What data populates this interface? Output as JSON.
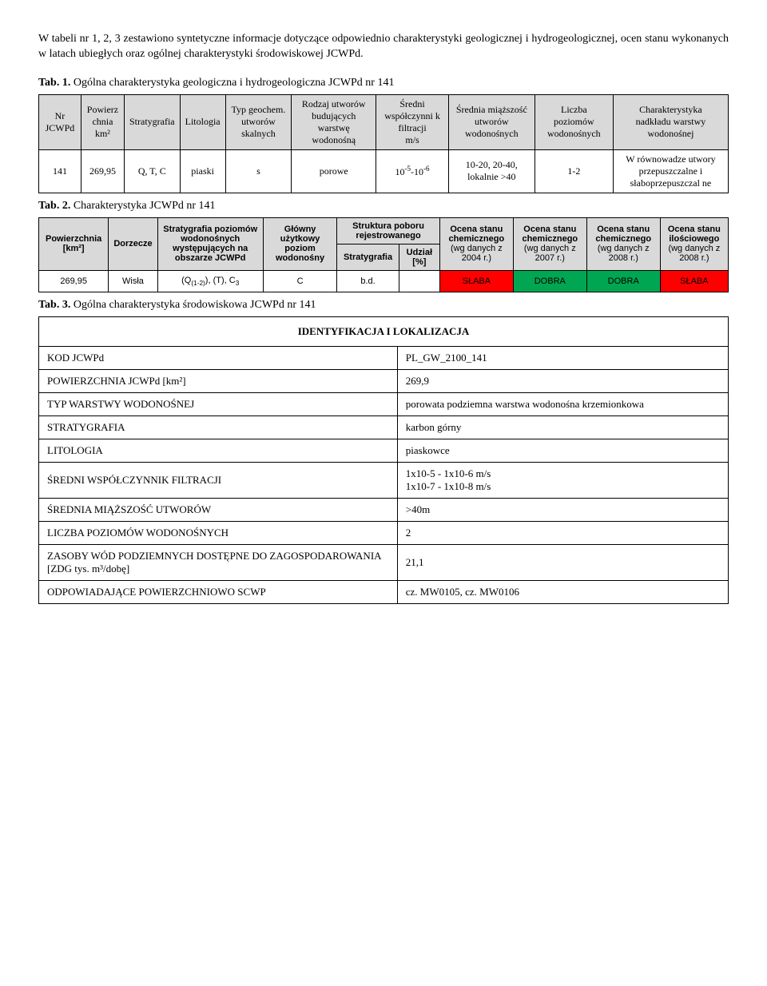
{
  "intro_paragraph": "W tabeli nr 1, 2, 3 zestawiono syntetyczne informacje dotyczące odpowiednio charakterystyki geologicznej i hydrogeologicznej, ocen stanu wykonanych w latach ubiegłych oraz ogólnej charakterystyki środowiskowej JCWPd.",
  "table1": {
    "caption_bold": "Tab. 1.",
    "caption_rest": " Ogólna charakterystyka geologiczna i hydrogeologiczna JCWPd nr 141",
    "headers": {
      "h1": "Nr JCWPd",
      "h2_top": "Powierz",
      "h2_bot": "chnia km²",
      "h3": "Stratygrafia",
      "h4": "Litologia",
      "h5": "Typ geochem. utworów skalnych",
      "h6": "Rodzaj utworów budujących warstwę wodonośną",
      "h7": "Średni współczynni k filtracji",
      "h7_unit": "m/s",
      "h8": "Średnia miąższość utworów wodonośnych",
      "h9": "Liczba poziomów wodonośnych",
      "h10_top": "Charakterystyka",
      "h10_bot": "nadkładu warstwy wodonośnej"
    },
    "row": {
      "c1": "141",
      "c2": "269,95",
      "c3": "Q, T, C",
      "c4": "piaski",
      "c5": "s",
      "c6": "porowe",
      "c7_html": "10⁻⁵-10⁻⁶",
      "c8": "10-20, 20-40, lokalnie >40",
      "c9": "1-2",
      "c10": "W równowadze utwory przepuszczalne i słaboprzepuszczal ne"
    }
  },
  "table2": {
    "caption_bold": "Tab. 2.",
    "caption_rest": " Charakterystyka JCWPd nr 141",
    "headers": {
      "pow": "Powierzchnia [km²]",
      "dor": "Dorzecze",
      "strat_poz": "Stratygrafia poziomów wodonośnych występujących na obszarze JCWPd",
      "glowny": "Główny użytkowy poziom wodonośny",
      "struktura_top": "Struktura poboru rejestrowanego",
      "struktura_strat": "Stratygrafia",
      "struktura_udz": "Udział [%]",
      "chem04_top": "Ocena stanu chemicznego",
      "chem04_bot": "(wg danych z 2004 r.)",
      "chem07_top": "Ocena stanu chemicznego",
      "chem07_bot": "(wg danych z 2007 r.)",
      "chem08_top": "Ocena stanu chemicznego",
      "chem08_bot": "(wg danych z 2008 r.)",
      "ilosc_top": "Ocena stanu ilościowego",
      "ilosc_bot": "(wg danych z 2008 r.)"
    },
    "row": {
      "pow": "269,95",
      "dor": "Wisła",
      "strat": "(Q(1-2)), (T), C₃",
      "glowny": "C",
      "s_strat": "b.d.",
      "s_udz": "",
      "chem04": "SŁABA",
      "chem07": "DOBRA",
      "chem08": "DOBRA",
      "ilosc": "SŁABA"
    },
    "colors": {
      "slaba_bg": "#ff0000",
      "dobra_bg": "#00a651"
    }
  },
  "table3": {
    "caption_bold": "Tab. 3.",
    "caption_rest": " Ogólna charakterystyka środowiskowa JCWPd nr 141",
    "section_header": "IDENTYFIKACJA I LOKALIZACJA",
    "rows": [
      {
        "label": "KOD JCWPd",
        "value": "PL_GW_2100_141"
      },
      {
        "label": "POWIERZCHNIA JCWPd [km²]",
        "value": "269,9"
      },
      {
        "label": "TYP WARSTWY WODONOŚNEJ",
        "value": "porowata podziemna warstwa wodonośna krzemionkowa"
      },
      {
        "label": "STRATYGRAFIA",
        "value": "karbon górny"
      },
      {
        "label": "LITOLOGIA",
        "value": "piaskowce"
      },
      {
        "label": "ŚREDNI WSPÓŁCZYNNIK FILTRACJI",
        "value": "1x10-5 - 1x10-6 m/s\n1x10-7 - 1x10-8  m/s"
      },
      {
        "label": "ŚREDNIA MIĄŻSZOŚĆ UTWORÓW",
        "value": ">40m"
      },
      {
        "label": "LICZBA POZIOMÓW WODONOŚNYCH",
        "value": "2"
      },
      {
        "label": "ZASOBY WÓD PODZIEMNYCH DOSTĘPNE DO ZAGOSPODAROWANIA [ZDG tys. m³/dobę]",
        "value": "21,1"
      },
      {
        "label": "ODPOWIADAJĄCE POWIERZCHNIOWO SCWP",
        "value": "cz. MW0105, cz. MW0106"
      }
    ]
  }
}
